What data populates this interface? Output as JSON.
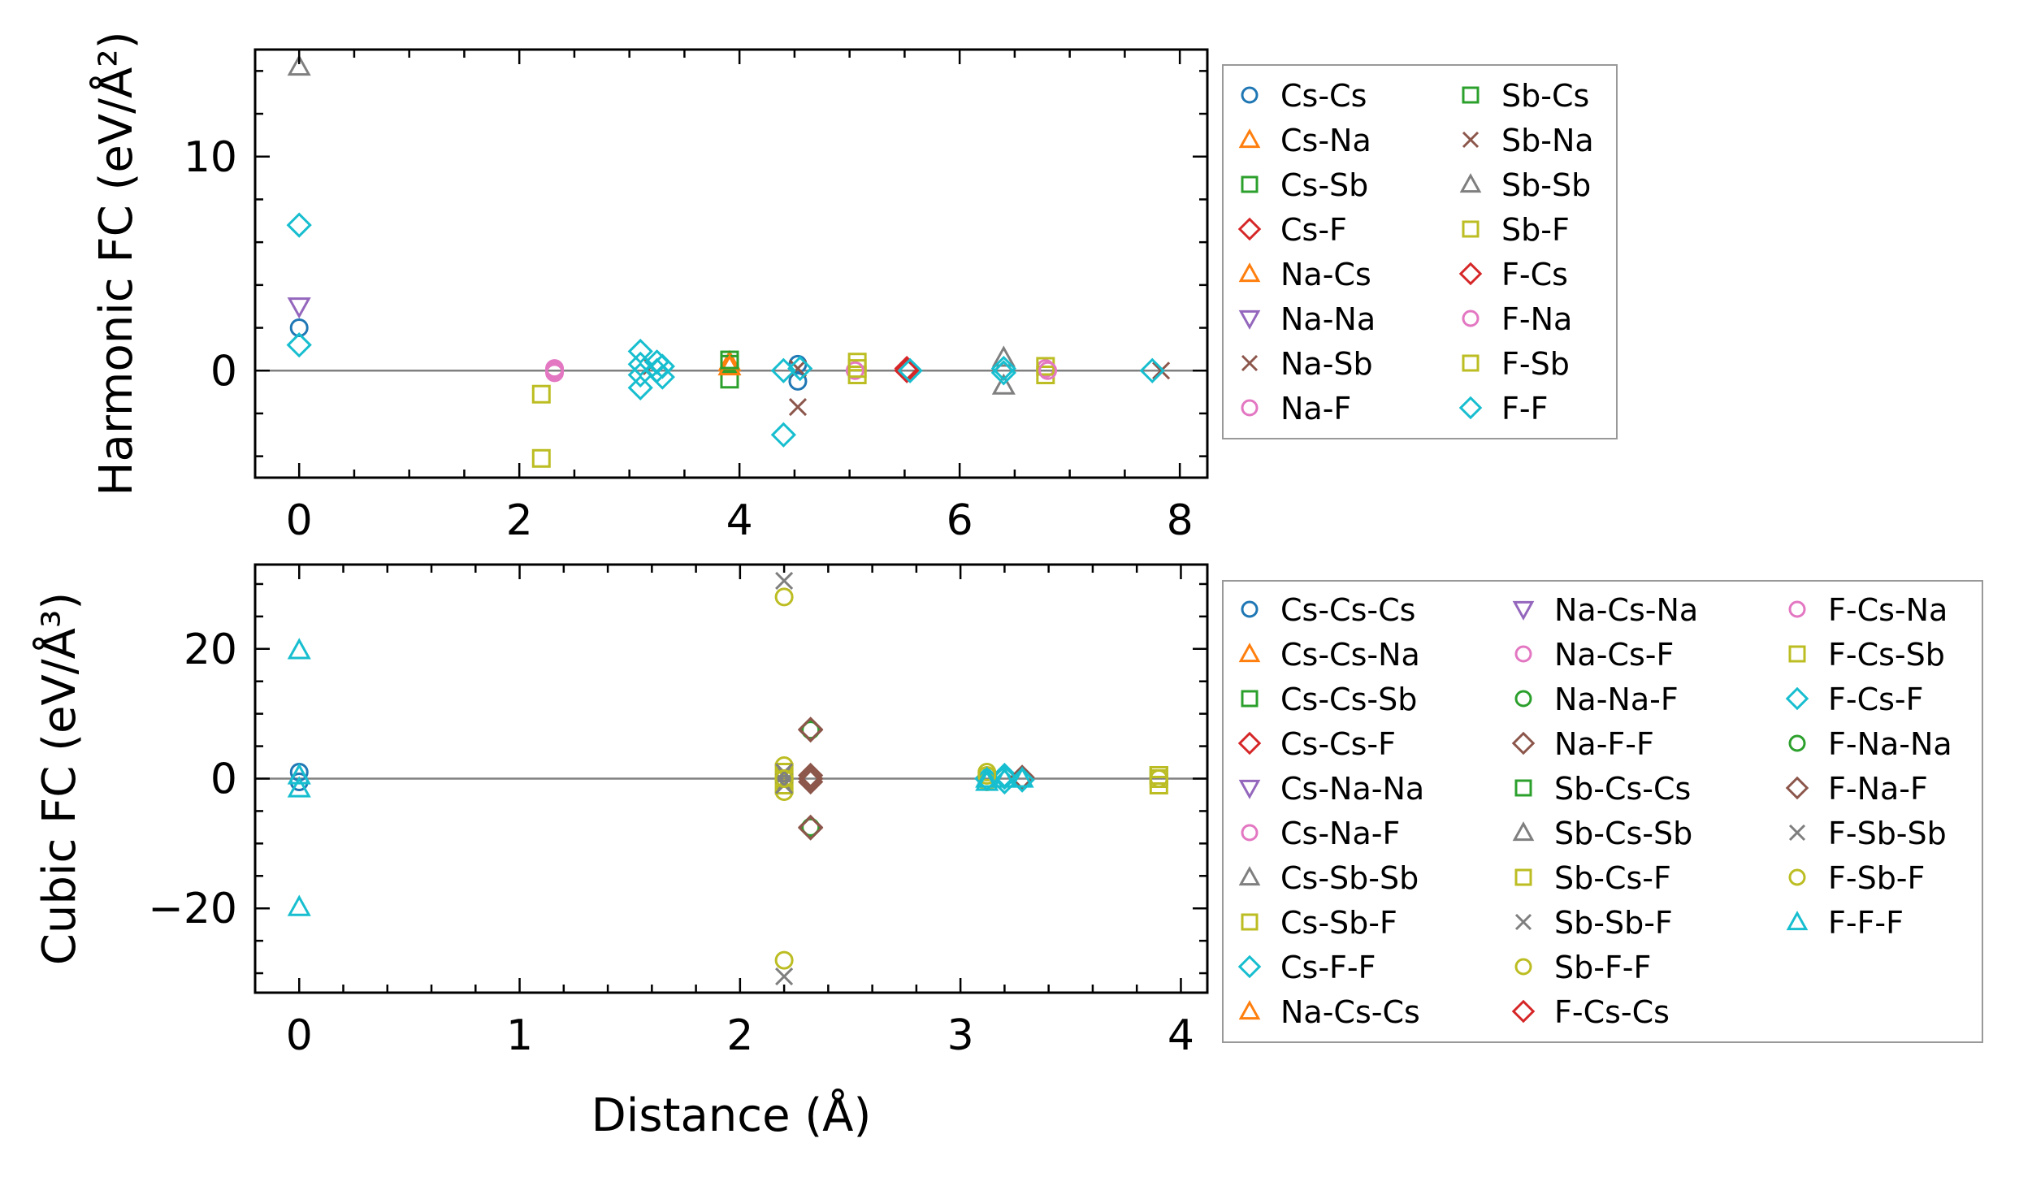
{
  "colors": {
    "Cs-Cs": "#1f77b4",
    "Cs-Na": "#ff7f0e",
    "Cs-Sb": "#2ca02c",
    "Cs-F": "#d62728",
    "Na-Cs": "#ff7f0e",
    "Na-Na": "#9467bd",
    "Na-Sb": "#8c564b",
    "Na-F": "#e377c2",
    "Sb-Cs": "#2ca02c",
    "Sb-Na": "#8c564b",
    "Sb-Sb": "#7f7f7f",
    "Sb-F": "#bcbd22",
    "F-Cs": "#d62728",
    "F-Na": "#e377c2",
    "F-Sb": "#bcbd22",
    "F-F": "#17becf",
    "Cs-Cs-Cs": "#1f77b4",
    "Cs-Cs-Na": "#ff7f0e",
    "Cs-Cs-Sb": "#2ca02c",
    "Cs-Cs-F": "#d62728",
    "Cs-Na-Na": "#9467bd",
    "Cs-Na-F": "#e377c2",
    "Cs-Sb-Sb": "#7f7f7f",
    "Cs-Sb-F": "#bcbd22",
    "Cs-F-F": "#17becf",
    "Na-Cs-Cs": "#ff7f0e",
    "Na-Cs-Na": "#9467bd",
    "Na-Cs-F": "#e377c2",
    "Na-Na-F": "#2ca02c",
    "Na-F-F": "#8c564b",
    "Sb-Cs-Cs": "#2ca02c",
    "Sb-Cs-Sb": "#7f7f7f",
    "Sb-Cs-F": "#bcbd22",
    "Sb-Sb-F": "#7f7f7f",
    "Sb-F-F": "#bcbd22",
    "F-Cs-Cs": "#d62728",
    "F-Cs-Na": "#e377c2",
    "F-Cs-Sb": "#bcbd22",
    "F-Cs-F": "#17becf",
    "F-Na-Na": "#2ca02c",
    "F-Na-F": "#8c564b",
    "F-Sb-Sb": "#7f7f7f",
    "F-Sb-F": "#bcbd22",
    "F-F-F": "#17becf"
  },
  "chart_data": [
    {
      "type": "scatter",
      "title": "",
      "ylabel": "Harmonic FC (eV/Å²)",
      "xlabel": "",
      "xlim": [
        -0.4,
        8.25
      ],
      "ylim": [
        -5,
        15
      ],
      "xticks": [
        0,
        2,
        4,
        6,
        8
      ],
      "xtick_labels": [
        "0",
        "2",
        "4",
        "6",
        "8"
      ],
      "yticks": [
        0,
        10
      ],
      "ytick_labels": [
        "0",
        "10"
      ],
      "zero_line": true,
      "legend_position": "outside-right",
      "legend_columns": 2,
      "series": [
        {
          "name": "Cs-Cs",
          "marker": "circle",
          "points": [
            [
              0,
              2.0
            ],
            [
              4.53,
              -0.5
            ],
            [
              4.53,
              0.3
            ]
          ]
        },
        {
          "name": "Cs-Na",
          "marker": "triangle-up",
          "points": [
            [
              3.91,
              0.4
            ]
          ]
        },
        {
          "name": "Cs-Sb",
          "marker": "square",
          "points": [
            [
              3.91,
              -0.4
            ],
            [
              3.91,
              0.3
            ]
          ]
        },
        {
          "name": "Cs-F",
          "marker": "diamond",
          "points": [
            [
              5.52,
              0.1
            ]
          ]
        },
        {
          "name": "Na-Cs",
          "marker": "triangle-up",
          "points": [
            [
              3.91,
              0.2
            ]
          ]
        },
        {
          "name": "Na-Na",
          "marker": "triangle-down",
          "points": [
            [
              0,
              3.0
            ]
          ]
        },
        {
          "name": "Na-Sb",
          "marker": "x",
          "points": [
            [
              4.53,
              -1.7
            ],
            [
              3.2,
              0.2
            ]
          ]
        },
        {
          "name": "Na-F",
          "marker": "circle",
          "points": [
            [
              2.32,
              -0.1
            ],
            [
              2.32,
              0.1
            ],
            [
              6.78,
              0.1
            ]
          ]
        },
        {
          "name": "Sb-Cs",
          "marker": "square",
          "points": [
            [
              3.91,
              0.5
            ]
          ]
        },
        {
          "name": "Sb-Na",
          "marker": "x",
          "points": [
            [
              4.53,
              0.1
            ],
            [
              7.83,
              0.0
            ]
          ]
        },
        {
          "name": "Sb-Sb",
          "marker": "triangle-up",
          "points": [
            [
              0,
              14.2
            ],
            [
              6.4,
              0.6
            ],
            [
              6.4,
              -0.7
            ]
          ]
        },
        {
          "name": "Sb-F",
          "marker": "square",
          "points": [
            [
              2.2,
              -1.1
            ],
            [
              2.2,
              -4.1
            ],
            [
              5.07,
              0.4
            ],
            [
              5.07,
              -0.2
            ],
            [
              6.78,
              0.2
            ],
            [
              6.78,
              -0.2
            ]
          ]
        },
        {
          "name": "F-Cs",
          "marker": "diamond",
          "points": [
            [
              5.52,
              0.0
            ]
          ]
        },
        {
          "name": "F-Na",
          "marker": "circle",
          "points": [
            [
              2.32,
              0.0
            ],
            [
              5.05,
              0.0
            ],
            [
              6.8,
              0.0
            ]
          ]
        },
        {
          "name": "F-Sb",
          "marker": "square",
          "points": [
            [
              5.07,
              0.1
            ]
          ]
        },
        {
          "name": "F-F",
          "marker": "diamond",
          "points": [
            [
              0,
              6.8
            ],
            [
              0,
              1.2
            ],
            [
              3.1,
              0.9
            ],
            [
              3.1,
              0.3
            ],
            [
              3.1,
              -0.2
            ],
            [
              3.1,
              -0.8
            ],
            [
              3.25,
              0.4
            ],
            [
              3.25,
              0.0
            ],
            [
              3.3,
              0.2
            ],
            [
              3.3,
              -0.3
            ],
            [
              4.4,
              0.0
            ],
            [
              4.4,
              -3.0
            ],
            [
              4.55,
              0.1
            ],
            [
              5.55,
              0.0
            ],
            [
              6.4,
              0.1
            ],
            [
              6.4,
              -0.1
            ],
            [
              7.75,
              0.0
            ]
          ]
        }
      ]
    },
    {
      "type": "scatter",
      "title": "",
      "ylabel": "Cubic FC (eV/Å³)",
      "xlabel": "Distance (Å)",
      "xlim": [
        -0.2,
        4.12
      ],
      "ylim": [
        -33,
        33
      ],
      "xticks": [
        0,
        1,
        2,
        3,
        4
      ],
      "xtick_labels": [
        "0",
        "1",
        "2",
        "3",
        "4"
      ],
      "yticks": [
        -20,
        0,
        20
      ],
      "ytick_labels": [
        "−20",
        "0",
        "20"
      ],
      "zero_line": true,
      "legend_position": "outside-right",
      "legend_columns": 3,
      "series": [
        {
          "name": "Cs-Cs-Cs",
          "marker": "circle",
          "points": [
            [
              0,
              1.0
            ],
            [
              0,
              -0.5
            ]
          ]
        },
        {
          "name": "Cs-Cs-Na",
          "marker": "triangle-up",
          "points": []
        },
        {
          "name": "Cs-Cs-Sb",
          "marker": "square",
          "points": []
        },
        {
          "name": "Cs-Cs-F",
          "marker": "diamond",
          "points": []
        },
        {
          "name": "Cs-Na-Na",
          "marker": "triangle-down",
          "points": []
        },
        {
          "name": "Cs-Na-F",
          "marker": "circle",
          "points": []
        },
        {
          "name": "Cs-Sb-Sb",
          "marker": "triangle-up",
          "points": []
        },
        {
          "name": "Cs-Sb-F",
          "marker": "square",
          "points": []
        },
        {
          "name": "Cs-F-F",
          "marker": "diamond",
          "points": [
            [
              3.2,
              0.5
            ],
            [
              3.2,
              -0.5
            ]
          ]
        },
        {
          "name": "Na-Cs-Cs",
          "marker": "triangle-up",
          "points": []
        },
        {
          "name": "Na-Cs-Na",
          "marker": "triangle-down",
          "points": []
        },
        {
          "name": "Na-Cs-F",
          "marker": "circle",
          "points": []
        },
        {
          "name": "Na-Na-F",
          "marker": "circle",
          "points": []
        },
        {
          "name": "Na-F-F",
          "marker": "diamond",
          "points": [
            [
              2.32,
              7.5
            ],
            [
              2.32,
              -7.5
            ],
            [
              2.32,
              0.5
            ],
            [
              2.32,
              -0.5
            ],
            [
              3.28,
              0.2
            ]
          ]
        },
        {
          "name": "Sb-Cs-Cs",
          "marker": "square",
          "points": [
            [
              3.9,
              0.5
            ]
          ]
        },
        {
          "name": "Sb-Cs-Sb",
          "marker": "triangle-up",
          "points": []
        },
        {
          "name": "Sb-Cs-F",
          "marker": "square",
          "points": [
            [
              2.2,
              1.0
            ],
            [
              2.2,
              -1.0
            ],
            [
              3.9,
              0.0
            ],
            [
              3.9,
              -1.0
            ]
          ]
        },
        {
          "name": "Sb-Sb-F",
          "marker": "x",
          "points": [
            [
              2.2,
              30.5
            ],
            [
              2.2,
              -30.5
            ],
            [
              2.2,
              0.5
            ],
            [
              2.2,
              -0.5
            ]
          ]
        },
        {
          "name": "Sb-F-F",
          "marker": "circle",
          "points": [
            [
              2.2,
              28.0
            ],
            [
              2.2,
              -28.0
            ],
            [
              2.2,
              2.0
            ],
            [
              2.2,
              -2.0
            ],
            [
              3.12,
              1.0
            ],
            [
              3.12,
              -0.5
            ]
          ]
        },
        {
          "name": "F-Cs-Cs",
          "marker": "diamond",
          "points": []
        },
        {
          "name": "F-Cs-Na",
          "marker": "circle",
          "points": []
        },
        {
          "name": "F-Cs-Sb",
          "marker": "square",
          "points": [
            [
              3.9,
              0.5
            ]
          ]
        },
        {
          "name": "F-Cs-F",
          "marker": "diamond",
          "points": [
            [
              3.12,
              0.0
            ],
            [
              3.2,
              0.2
            ],
            [
              3.28,
              -0.2
            ]
          ]
        },
        {
          "name": "F-Na-Na",
          "marker": "circle",
          "points": [
            [
              2.32,
              7.5
            ],
            [
              2.32,
              -7.5
            ]
          ]
        },
        {
          "name": "F-Na-F",
          "marker": "diamond",
          "points": [
            [
              2.32,
              0.0
            ],
            [
              2.32,
              7.6
            ],
            [
              2.32,
              -7.6
            ]
          ]
        },
        {
          "name": "F-Sb-Sb",
          "marker": "x",
          "points": [
            [
              2.2,
              1.0
            ],
            [
              2.2,
              -1.0
            ]
          ]
        },
        {
          "name": "F-Sb-F",
          "marker": "circle",
          "points": [
            [
              2.2,
              0.0
            ],
            [
              3.12,
              0.5
            ],
            [
              3.9,
              0.0
            ]
          ]
        },
        {
          "name": "F-F-F",
          "marker": "triangle-up",
          "points": [
            [
              0,
              19.8
            ],
            [
              0,
              -19.8
            ],
            [
              0,
              0.5
            ],
            [
              0,
              -1.5
            ],
            [
              3.12,
              0.0
            ],
            [
              3.12,
              -0.5
            ],
            [
              3.2,
              0.0
            ],
            [
              3.28,
              0.0
            ]
          ]
        }
      ]
    }
  ]
}
